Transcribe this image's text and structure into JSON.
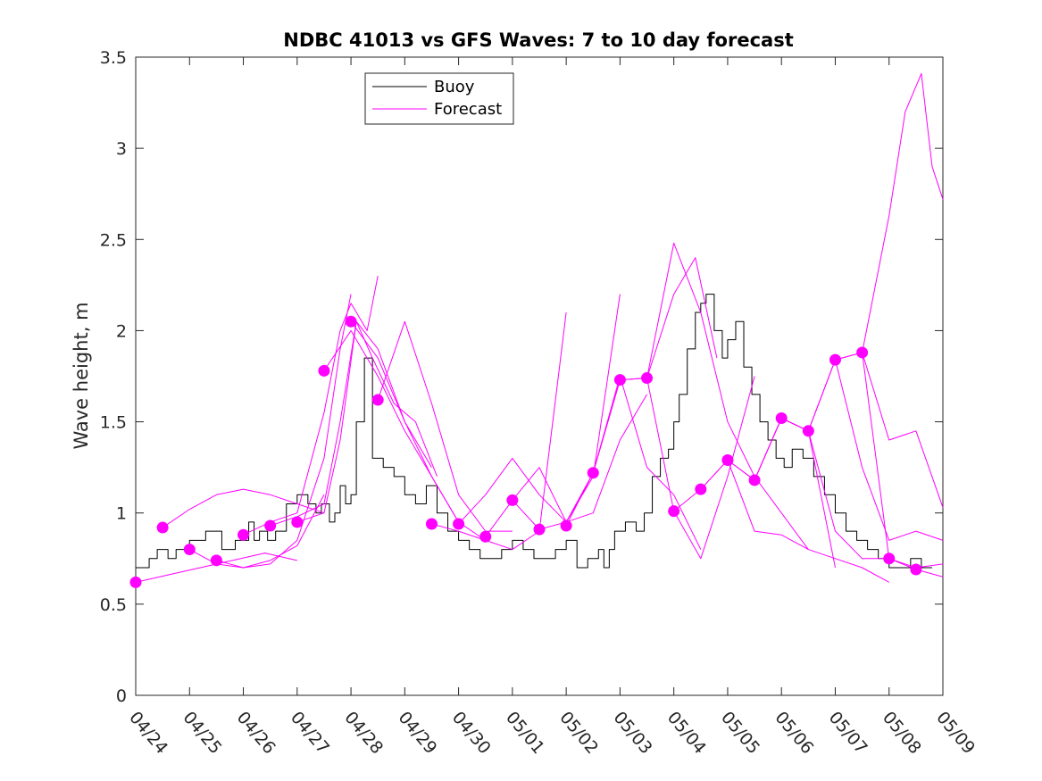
{
  "chart_data": {
    "type": "line",
    "title": "NDBC 41013 vs GFS Waves: 7 to 10 day forecast",
    "xlabel": "",
    "ylabel": "Wave height, m",
    "ylim": [
      0,
      3.5
    ],
    "yticks": [
      "0",
      "0.5",
      "1",
      "1.5",
      "2",
      "2.5",
      "3",
      "3.5"
    ],
    "xlim": [
      "04/24",
      "05/09"
    ],
    "xticks": [
      "04/24",
      "04/25",
      "04/26",
      "04/27",
      "04/28",
      "04/29",
      "04/30",
      "05/01",
      "05/02",
      "05/03",
      "05/04",
      "05/05",
      "05/06",
      "05/07",
      "05/08",
      "05/09"
    ],
    "grid": false,
    "legend": {
      "position": "top-center",
      "entries": [
        {
          "label": "Buoy",
          "color": "#000000"
        },
        {
          "label": "Forecast",
          "color": "#ff00ff"
        }
      ]
    },
    "colors": {
      "buoy": "#000000",
      "forecast": "#ff00ff"
    },
    "series": [
      {
        "name": "Buoy",
        "x": [
          0,
          0.25,
          0.4,
          0.6,
          0.75,
          1.0,
          1.3,
          1.6,
          1.85,
          2.1,
          2.2,
          2.3,
          2.45,
          2.6,
          2.8,
          3.0,
          3.2,
          3.35,
          3.45,
          3.6,
          3.7,
          3.8,
          3.9,
          4.0,
          4.1,
          4.25,
          4.4,
          4.6,
          4.8,
          5.0,
          5.2,
          5.4,
          5.6,
          5.8,
          6.0,
          6.2,
          6.4,
          6.6,
          6.8,
          7.0,
          7.2,
          7.4,
          7.6,
          7.8,
          7.9,
          8.0,
          8.2,
          8.4,
          8.6,
          8.7,
          8.8,
          8.9,
          9.1,
          9.3,
          9.45,
          9.6,
          9.75,
          9.9,
          10.0,
          10.1,
          10.25,
          10.4,
          10.5,
          10.6,
          10.75,
          10.9,
          11.0,
          11.15,
          11.3,
          11.45,
          11.6,
          11.75,
          11.9,
          12.05,
          12.2,
          12.4,
          12.6,
          12.8,
          13.0,
          13.2,
          13.4,
          13.6,
          13.8,
          14.0,
          14.2,
          14.4,
          14.6,
          14.8
        ],
        "y": [
          0.7,
          0.75,
          0.8,
          0.75,
          0.8,
          0.85,
          0.9,
          0.8,
          0.85,
          0.95,
          0.85,
          0.9,
          0.85,
          0.9,
          1.05,
          1.1,
          1.05,
          1.0,
          1.05,
          0.95,
          1.0,
          1.15,
          1.05,
          1.1,
          1.5,
          1.85,
          1.3,
          1.25,
          1.2,
          1.1,
          1.05,
          1.15,
          1.0,
          0.9,
          0.85,
          0.8,
          0.75,
          0.75,
          0.8,
          0.85,
          0.8,
          0.75,
          0.75,
          0.8,
          0.8,
          0.85,
          0.7,
          0.75,
          0.8,
          0.7,
          0.8,
          0.9,
          0.95,
          0.9,
          1.0,
          1.2,
          1.3,
          1.35,
          1.5,
          1.65,
          1.9,
          2.1,
          2.15,
          2.2,
          2.0,
          1.85,
          1.95,
          2.05,
          1.8,
          1.65,
          1.5,
          1.4,
          1.3,
          1.25,
          1.35,
          1.3,
          1.2,
          1.1,
          1.0,
          0.9,
          0.85,
          0.8,
          0.75,
          0.7,
          0.7,
          0.75,
          0.7,
          0.7
        ]
      },
      {
        "name": "Forecast",
        "x": [
          0,
          0.6,
          1.2,
          1.8,
          2.4,
          3.0
        ],
        "y": [
          0.62,
          0.66,
          0.7,
          0.74,
          0.78,
          0.74
        ]
      },
      {
        "name": "Forecast",
        "x": [
          0.5,
          1.0,
          1.5,
          2.0,
          2.5,
          3.0,
          3.5
        ],
        "y": [
          0.92,
          1.02,
          1.1,
          1.13,
          1.1,
          1.05,
          1.0
        ]
      },
      {
        "name": "Forecast",
        "x": [
          1.0,
          1.5,
          2.0,
          2.5,
          3.0,
          3.5
        ],
        "y": [
          0.8,
          0.72,
          0.7,
          0.74,
          0.82,
          1.1
        ]
      },
      {
        "name": "Forecast",
        "x": [
          1.5,
          2.0,
          2.5,
          3.0,
          3.5,
          3.8,
          4.0
        ],
        "y": [
          0.74,
          0.7,
          0.72,
          0.85,
          1.3,
          1.9,
          2.2
        ]
      },
      {
        "name": "Forecast",
        "x": [
          2.0,
          2.5,
          3.0,
          3.5,
          3.8,
          4.0,
          4.3,
          4.5
        ],
        "y": [
          0.88,
          0.95,
          1.0,
          1.55,
          2.0,
          2.15,
          2.0,
          2.3
        ]
      },
      {
        "name": "Forecast",
        "x": [
          2.5,
          3.0,
          3.5,
          3.8,
          4.1,
          4.5,
          5.0,
          5.5
        ],
        "y": [
          0.93,
          0.98,
          1.05,
          1.5,
          2.05,
          1.9,
          1.5,
          1.25
        ]
      },
      {
        "name": "Forecast",
        "x": [
          3.0,
          3.5,
          3.8,
          4.1,
          4.4,
          4.8,
          5.2,
          5.6
        ],
        "y": [
          0.95,
          1.0,
          1.4,
          2.05,
          1.85,
          1.6,
          1.5,
          1.2
        ]
      },
      {
        "name": "Forecast",
        "x": [
          3.5,
          4.0,
          4.5,
          5.0,
          5.5,
          6.0
        ],
        "y": [
          1.78,
          2.0,
          1.75,
          1.45,
          1.2,
          0.95
        ]
      },
      {
        "name": "Forecast",
        "x": [
          4.0,
          4.5,
          5.0,
          5.5,
          6.0,
          6.5
        ],
        "y": [
          2.05,
          1.85,
          1.5,
          1.2,
          0.95,
          0.85
        ]
      },
      {
        "name": "Forecast",
        "x": [
          4.5,
          5.0,
          5.5,
          6.0,
          6.5,
          7.0
        ],
        "y": [
          1.62,
          2.05,
          1.6,
          1.1,
          0.9,
          0.9
        ]
      },
      {
        "name": "Forecast",
        "x": [
          5.5,
          6.0,
          6.5,
          7.0,
          7.5,
          8.0
        ],
        "y": [
          0.94,
          0.9,
          0.85,
          0.8,
          0.9,
          2.1
        ]
      },
      {
        "name": "Forecast",
        "x": [
          6.0,
          6.5,
          7.0,
          7.5,
          8.0,
          8.5,
          9.0
        ],
        "y": [
          0.94,
          1.1,
          1.3,
          1.1,
          0.95,
          1.2,
          2.2
        ]
      },
      {
        "name": "Forecast",
        "x": [
          6.5,
          7.0,
          7.5,
          8.0,
          8.5,
          9.0,
          9.5
        ],
        "y": [
          0.87,
          1.07,
          1.25,
          0.95,
          1.0,
          1.4,
          1.65
        ]
      },
      {
        "name": "Forecast",
        "x": [
          7.0,
          7.5,
          8.0,
          8.5,
          9.0,
          9.5,
          10.0,
          10.5
        ],
        "y": [
          1.07,
          0.91,
          0.95,
          1.22,
          1.75,
          1.25,
          1.1,
          0.8
        ]
      },
      {
        "name": "Forecast",
        "x": [
          8.0,
          8.5,
          9.0,
          9.5,
          10.0,
          10.4,
          10.8
        ],
        "y": [
          0.93,
          1.22,
          1.73,
          1.74,
          2.2,
          2.4,
          1.85
        ]
      },
      {
        "name": "Forecast",
        "x": [
          8.5,
          9.0,
          9.5,
          10.0,
          10.5,
          11.0,
          11.5
        ],
        "y": [
          1.22,
          1.73,
          1.74,
          1.01,
          0.75,
          1.2,
          1.75
        ]
      },
      {
        "name": "Forecast",
        "x": [
          9.5,
          10.0,
          10.5,
          11.0,
          11.5,
          12.0,
          12.5
        ],
        "y": [
          1.74,
          2.48,
          2.1,
          1.5,
          1.2,
          1.0,
          0.8
        ]
      },
      {
        "name": "Forecast",
        "x": [
          10.0,
          10.5,
          11.0,
          11.5,
          12.0,
          12.5,
          13.0
        ],
        "y": [
          1.01,
          1.13,
          1.29,
          1.18,
          1.52,
          1.45,
          0.7
        ]
      },
      {
        "name": "Forecast",
        "x": [
          10.5,
          11.0,
          11.5,
          12.0,
          12.5,
          13.0,
          13.5,
          14.0
        ],
        "y": [
          1.13,
          1.29,
          0.9,
          0.88,
          0.8,
          0.75,
          0.7,
          0.62
        ]
      },
      {
        "name": "Forecast",
        "x": [
          11.0,
          11.5,
          12.0,
          12.5,
          13.0,
          13.5,
          14.0,
          14.5,
          15.0
        ],
        "y": [
          1.29,
          1.18,
          1.52,
          1.45,
          0.9,
          0.75,
          0.75,
          0.7,
          0.72
        ]
      },
      {
        "name": "Forecast",
        "x": [
          11.5,
          12.0,
          12.5,
          13.0,
          13.5,
          14.0,
          14.5,
          15.0
        ],
        "y": [
          1.18,
          1.52,
          1.45,
          1.84,
          1.25,
          0.85,
          0.9,
          0.85
        ]
      },
      {
        "name": "Forecast",
        "x": [
          12.5,
          13.0,
          13.5,
          14.0,
          14.5,
          15.0
        ],
        "y": [
          1.45,
          1.84,
          1.88,
          1.4,
          1.45,
          1.03
        ]
      },
      {
        "name": "Forecast",
        "x": [
          13.0,
          13.5,
          14.0,
          14.3,
          14.6,
          14.8,
          15.0
        ],
        "y": [
          1.84,
          1.88,
          2.63,
          3.2,
          3.41,
          2.9,
          2.72
        ]
      },
      {
        "name": "Forecast",
        "x": [
          13.5,
          14.0,
          14.5,
          15.0
        ],
        "y": [
          1.88,
          0.75,
          0.69,
          0.65
        ]
      }
    ],
    "markers": {
      "name": "Forecast",
      "x": [
        0,
        0.5,
        1.0,
        1.5,
        2.0,
        2.5,
        3.0,
        3.5,
        4.0,
        4.5,
        5.5,
        6.0,
        6.5,
        7.0,
        7.5,
        8.0,
        8.5,
        9.0,
        9.5,
        10.0,
        10.5,
        11.0,
        11.5,
        12.0,
        12.5,
        13.0,
        13.5,
        14.0,
        14.5
      ],
      "y": [
        0.62,
        0.92,
        0.8,
        0.74,
        0.88,
        0.93,
        0.95,
        1.78,
        2.05,
        1.62,
        0.94,
        0.94,
        0.87,
        1.07,
        0.91,
        0.93,
        1.22,
        1.73,
        1.74,
        1.01,
        1.13,
        1.29,
        1.18,
        1.52,
        1.45,
        1.84,
        1.88,
        0.75,
        0.69
      ]
    }
  }
}
